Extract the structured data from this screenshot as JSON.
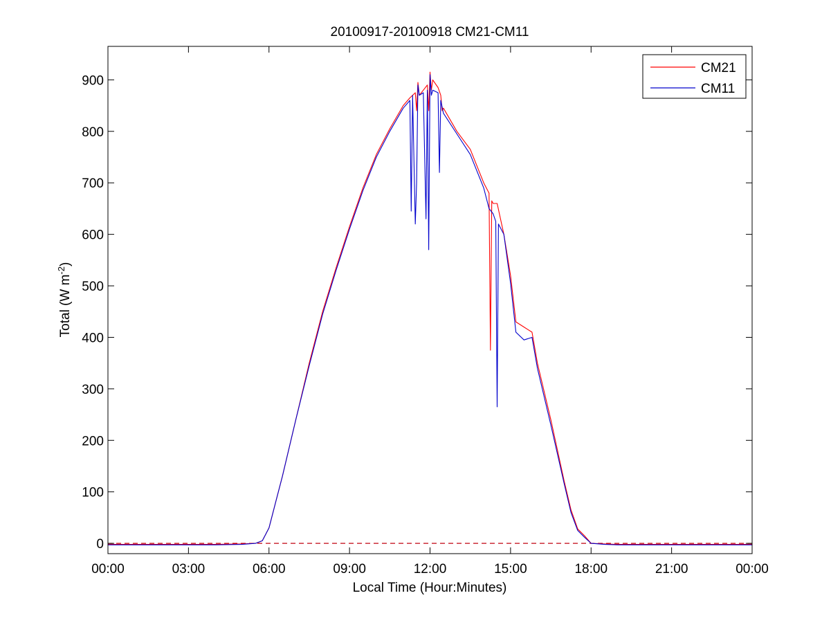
{
  "chart_data": {
    "type": "line",
    "title": "20100917-20100918 CM21-CM11",
    "xlabel": "Local Time (Hour:Minutes)",
    "ylabel_main": "Total (W m",
    "ylabel_sup": "-2",
    "ylabel_close": ")",
    "xlim": [
      0,
      24
    ],
    "ylim": [
      -20,
      965
    ],
    "xticks": [
      0,
      3,
      6,
      9,
      12,
      15,
      18,
      21,
      24
    ],
    "xtick_labels": [
      "00:00",
      "03:00",
      "06:00",
      "09:00",
      "12:00",
      "15:00",
      "18:00",
      "21:00",
      "00:00"
    ],
    "yticks": [
      0,
      100,
      200,
      300,
      400,
      500,
      600,
      700,
      800,
      900
    ],
    "ytick_labels": [
      "0",
      "100",
      "200",
      "300",
      "400",
      "500",
      "600",
      "700",
      "800",
      "900"
    ],
    "grid": false,
    "legend_position": "top-right",
    "reference_line": {
      "y": 0,
      "style": "dashed",
      "color": "#c0000f"
    },
    "series": [
      {
        "name": "CM21",
        "color": "#ff0000",
        "x": [
          0,
          1,
          2,
          3,
          4,
          5,
          5.5,
          5.75,
          6,
          6.25,
          6.5,
          7,
          7.5,
          8,
          8.5,
          9,
          9.5,
          10,
          10.5,
          11,
          11.25,
          11.45,
          11.5,
          11.55,
          11.6,
          11.75,
          11.9,
          11.95,
          12,
          12.05,
          12.1,
          12.3,
          12.4,
          12.45,
          12.5,
          13,
          13.5,
          14,
          14.2,
          14.25,
          14.3,
          14.35,
          14.5,
          14.75,
          15,
          15.2,
          15.5,
          15.8,
          16,
          16.5,
          17,
          17.25,
          17.5,
          17.75,
          18,
          18.5,
          19,
          20,
          21,
          22,
          23,
          24
        ],
        "y": [
          -2,
          -2,
          -2,
          -2,
          -2,
          -1,
          0,
          5,
          30,
          80,
          130,
          240,
          350,
          450,
          535,
          615,
          690,
          755,
          805,
          850,
          865,
          875,
          840,
          895,
          870,
          880,
          890,
          840,
          915,
          880,
          900,
          885,
          870,
          840,
          845,
          800,
          765,
          700,
          680,
          375,
          665,
          660,
          660,
          600,
          520,
          430,
          420,
          410,
          350,
          240,
          120,
          65,
          28,
          15,
          0,
          -1,
          -2,
          -2,
          -2,
          -2,
          -2,
          -2
        ]
      },
      {
        "name": "CM11",
        "color": "#0000cc",
        "x": [
          0,
          1,
          2,
          3,
          4,
          5,
          5.5,
          5.75,
          6,
          6.25,
          6.5,
          7,
          7.5,
          8,
          8.5,
          9,
          9.5,
          10,
          10.5,
          11,
          11.25,
          11.3,
          11.35,
          11.45,
          11.5,
          11.55,
          11.6,
          11.75,
          11.85,
          11.9,
          11.95,
          12,
          12.05,
          12.1,
          12.3,
          12.35,
          12.4,
          12.5,
          13,
          13.5,
          14,
          14.2,
          14.35,
          14.45,
          14.5,
          14.55,
          14.75,
          15,
          15.2,
          15.5,
          15.8,
          16,
          16.5,
          17,
          17.25,
          17.5,
          17.75,
          18,
          18.5,
          19,
          20,
          21,
          22,
          23,
          24
        ],
        "y": [
          -3,
          -3,
          -3,
          -3,
          -3,
          -2,
          0,
          5,
          30,
          80,
          130,
          240,
          345,
          445,
          530,
          610,
          685,
          750,
          800,
          845,
          860,
          645,
          870,
          620,
          700,
          890,
          870,
          875,
          630,
          880,
          570,
          910,
          870,
          880,
          875,
          720,
          860,
          835,
          795,
          755,
          690,
          650,
          640,
          625,
          265,
          620,
          600,
          505,
          410,
          395,
          400,
          340,
          230,
          115,
          60,
          25,
          12,
          0,
          -2,
          -3,
          -3,
          -3,
          -3,
          -3,
          -3
        ]
      }
    ]
  }
}
